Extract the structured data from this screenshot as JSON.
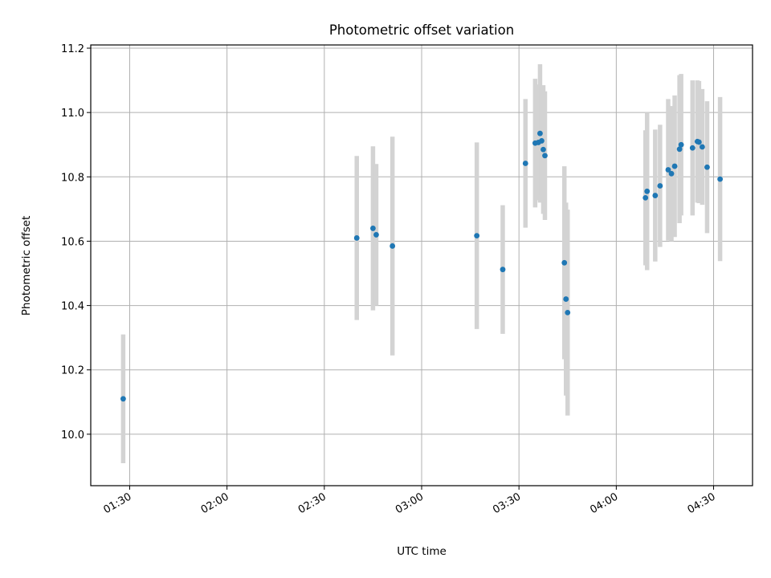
{
  "chart_data": {
    "type": "scatter",
    "title": "Photometric offset variation",
    "xlabel": "UTC time",
    "ylabel": "Photometric offset",
    "x_ticks": [
      "01:30",
      "02:00",
      "02:30",
      "03:00",
      "03:30",
      "04:00",
      "04:30"
    ],
    "y_ticks": [
      "10.0",
      "10.2",
      "10.4",
      "10.6",
      "10.8",
      "11.0",
      "11.2"
    ],
    "xlim": [
      "01:18",
      "04:42"
    ],
    "ylim": [
      9.84,
      11.21
    ],
    "grid": true,
    "colors": {
      "points": "#1f77b4",
      "error_bars": "#d3d3d3"
    },
    "points": [
      {
        "t": "01:28",
        "y": 10.11,
        "err": 0.2
      },
      {
        "t": "02:40",
        "y": 10.61,
        "err": 0.255
      },
      {
        "t": "02:45",
        "y": 10.64,
        "err": 0.255
      },
      {
        "t": "02:46",
        "y": 10.62,
        "err": 0.22
      },
      {
        "t": "02:51",
        "y": 10.585,
        "err": 0.34
      },
      {
        "t": "03:17",
        "y": 10.617,
        "err": 0.29
      },
      {
        "t": "03:25",
        "y": 10.512,
        "err": 0.2
      },
      {
        "t": "03:32",
        "y": 10.842,
        "err": 0.2
      },
      {
        "t": "03:35",
        "y": 10.905,
        "err": 0.2
      },
      {
        "t": "03:36",
        "y": 10.907,
        "err": 0.18
      },
      {
        "t": "03:36.5",
        "y": 10.935,
        "err": 0.215
      },
      {
        "t": "03:37",
        "y": 10.912,
        "err": 0.17
      },
      {
        "t": "03:37.5",
        "y": 10.885,
        "err": 0.2
      },
      {
        "t": "03:38",
        "y": 10.866,
        "err": 0.2
      },
      {
        "t": "03:44",
        "y": 10.533,
        "err": 0.3
      },
      {
        "t": "03:44.5",
        "y": 10.42,
        "err": 0.3
      },
      {
        "t": "03:45",
        "y": 10.378,
        "err": 0.32
      },
      {
        "t": "04:09",
        "y": 10.735,
        "err": 0.21
      },
      {
        "t": "04:09.5",
        "y": 10.755,
        "err": 0.245
      },
      {
        "t": "04:12",
        "y": 10.742,
        "err": 0.205
      },
      {
        "t": "04:13.5",
        "y": 10.772,
        "err": 0.19
      },
      {
        "t": "04:16",
        "y": 10.822,
        "err": 0.22
      },
      {
        "t": "04:17",
        "y": 10.81,
        "err": 0.21
      },
      {
        "t": "04:18",
        "y": 10.833,
        "err": 0.22
      },
      {
        "t": "04:19.5",
        "y": 10.886,
        "err": 0.23
      },
      {
        "t": "04:20",
        "y": 10.9,
        "err": 0.22
      },
      {
        "t": "04:23.5",
        "y": 10.89,
        "err": 0.21
      },
      {
        "t": "04:25",
        "y": 10.91,
        "err": 0.19
      },
      {
        "t": "04:25.5",
        "y": 10.908,
        "err": 0.19
      },
      {
        "t": "04:26.5",
        "y": 10.893,
        "err": 0.18
      },
      {
        "t": "04:28",
        "y": 10.83,
        "err": 0.205
      },
      {
        "t": "04:32",
        "y": 10.793,
        "err": 0.255
      }
    ]
  }
}
